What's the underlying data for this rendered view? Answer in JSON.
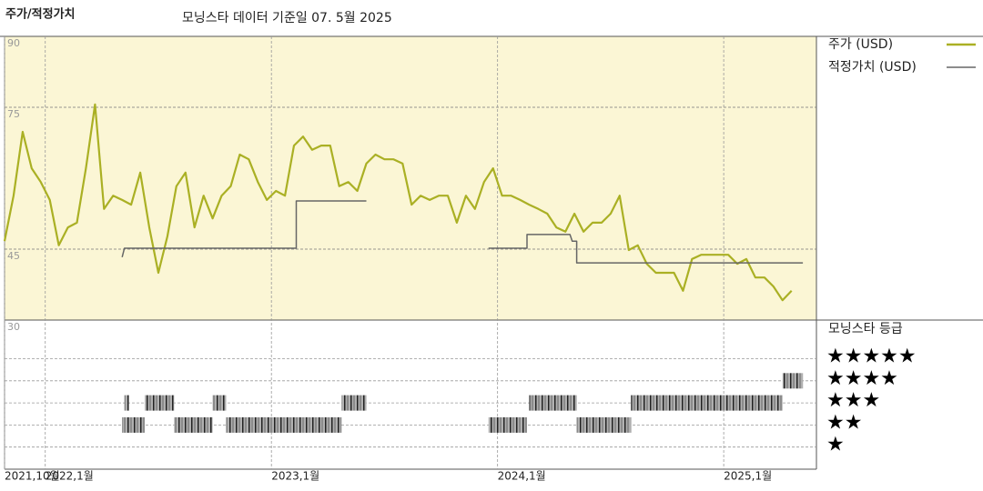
{
  "chart_data": {
    "type": "line",
    "title": "주가/적정가치",
    "subtitle": "모닝스타 데이터 기준일 07. 5월 2025",
    "rating_title": "모닝스타 등급",
    "xlim": [
      2021.82,
      2025.41
    ],
    "xticks": [
      {
        "value": 2021.82,
        "label": "2021,10월"
      },
      {
        "value": 2022,
        "label": "2022,1월"
      },
      {
        "value": 2023,
        "label": "2023,1월"
      },
      {
        "value": 2024,
        "label": "2024,1월"
      },
      {
        "value": 2025,
        "label": "2025,1월"
      }
    ],
    "ylim": [
      30,
      90
    ],
    "yticks": [
      30,
      45,
      75,
      90
    ],
    "grid": true,
    "background": "#fbf6d5",
    "series": [
      {
        "name": "주가 (USD)",
        "color": "#aab024",
        "x": [
          2021.82,
          2021.86,
          2021.9,
          2021.94,
          2021.98,
          2022.02,
          2022.06,
          2022.1,
          2022.14,
          2022.18,
          2022.22,
          2022.26,
          2022.3,
          2022.34,
          2022.38,
          2022.42,
          2022.46,
          2022.5,
          2022.54,
          2022.58,
          2022.62,
          2022.66,
          2022.7,
          2022.74,
          2022.78,
          2022.82,
          2022.86,
          2022.9,
          2022.94,
          2022.98,
          2023.02,
          2023.06,
          2023.1,
          2023.14,
          2023.18,
          2023.22,
          2023.26,
          2023.3,
          2023.34,
          2023.38,
          2023.42,
          2023.46,
          2023.5,
          2023.54,
          2023.58,
          2023.62,
          2023.66,
          2023.7,
          2023.74,
          2023.78,
          2023.82,
          2023.86,
          2023.9,
          2023.94,
          2023.98,
          2024.02,
          2024.06,
          2024.1,
          2024.14,
          2024.18,
          2024.22,
          2024.26,
          2024.3,
          2024.34,
          2024.38,
          2024.42,
          2024.46,
          2024.5,
          2024.54,
          2024.58,
          2024.62,
          2024.66,
          2024.7,
          2024.74,
          2024.78,
          2024.82,
          2024.86,
          2024.9,
          2024.94,
          2024.98,
          2025.02,
          2025.06,
          2025.1,
          2025.14,
          2025.18,
          2025.22,
          2025.26,
          2025.3
        ],
        "values": [
          46.7,
          56.3,
          69.8,
          62.1,
          59.2,
          55.4,
          45.8,
          49.6,
          50.6,
          62.1,
          75.6,
          53.5,
          56.3,
          55.4,
          54.4,
          61.2,
          49.6,
          40.0,
          47.7,
          58.3,
          61.2,
          49.6,
          56.3,
          51.5,
          56.3,
          58.3,
          65.0,
          64.0,
          59.2,
          55.4,
          57.3,
          56.3,
          66.9,
          68.8,
          66.0,
          66.9,
          66.9,
          58.3,
          59.2,
          57.3,
          63.1,
          65.0,
          64.0,
          64.0,
          63.1,
          54.4,
          56.3,
          55.4,
          56.3,
          56.3,
          50.6,
          56.3,
          53.5,
          59.2,
          62.1,
          56.3,
          56.3,
          55.4,
          54.4,
          53.5,
          52.5,
          49.6,
          48.7,
          52.5,
          48.7,
          50.6,
          50.6,
          52.5,
          56.3,
          44.8,
          45.8,
          41.9,
          40.0,
          40.0,
          40.0,
          36.2,
          42.9,
          43.8,
          43.8,
          43.8,
          43.8,
          41.9,
          42.9,
          39.0,
          39.0,
          37.1,
          34.2,
          36.2
        ]
      },
      {
        "name": "적정가치 (USD)",
        "color": "#666666",
        "x": [
          2022.34,
          2022.35,
          2023.11,
          2023.11,
          2023.42,
          2023.69,
          2023.96,
          2024.13,
          2024.13,
          2024.32,
          2024.33,
          2024.35,
          2024.35,
          2025.35
        ],
        "values": [
          43.3,
          45.2,
          45.2,
          55.2,
          55.2,
          null,
          45.2,
          45.2,
          48.1,
          48.1,
          46.7,
          46.7,
          42.1,
          42.1
        ]
      }
    ],
    "rating_ylim": [
      0,
      6.75
    ],
    "rating_rows": [
      {
        "value": 5,
        "label": "★★★★★"
      },
      {
        "value": 4,
        "label": "★★★★"
      },
      {
        "value": 3,
        "label": "★★★"
      },
      {
        "value": 2,
        "label": "★★"
      },
      {
        "value": 1,
        "label": "★"
      }
    ],
    "rating_periods": [
      {
        "stars": 2,
        "start": 2022.34,
        "end": 2022.44
      },
      {
        "stars": 3,
        "start": 2022.35,
        "end": 2022.37
      },
      {
        "stars": 3,
        "start": 2022.44,
        "end": 2022.57
      },
      {
        "stars": 2,
        "start": 2022.57,
        "end": 2022.74
      },
      {
        "stars": 3,
        "start": 2022.74,
        "end": 2022.8
      },
      {
        "stars": 2,
        "start": 2022.8,
        "end": 2023.31
      },
      {
        "stars": 3,
        "start": 2023.31,
        "end": 2023.42
      },
      {
        "stars": 2,
        "start": 2023.96,
        "end": 2024.13
      },
      {
        "stars": 3,
        "start": 2024.14,
        "end": 2024.35
      },
      {
        "stars": 2,
        "start": 2024.35,
        "end": 2024.59
      },
      {
        "stars": 3,
        "start": 2024.59,
        "end": 2025.26
      },
      {
        "stars": 4,
        "start": 2025.26,
        "end": 2025.35
      }
    ]
  }
}
